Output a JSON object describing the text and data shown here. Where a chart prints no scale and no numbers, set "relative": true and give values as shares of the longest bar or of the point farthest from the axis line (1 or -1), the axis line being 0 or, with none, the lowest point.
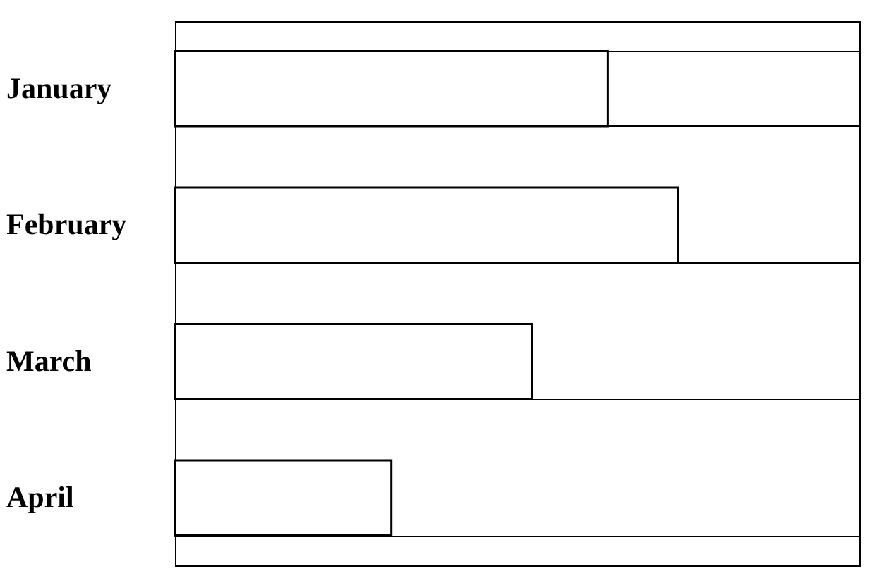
{
  "chart_data": {
    "type": "bar",
    "orientation": "horizontal",
    "relative": true,
    "grid": "y",
    "categories": [
      "January",
      "February",
      "March",
      "April"
    ],
    "values": [
      0.86,
      1,
      0.71,
      0.43
    ],
    "color": "#ffffff"
  }
}
